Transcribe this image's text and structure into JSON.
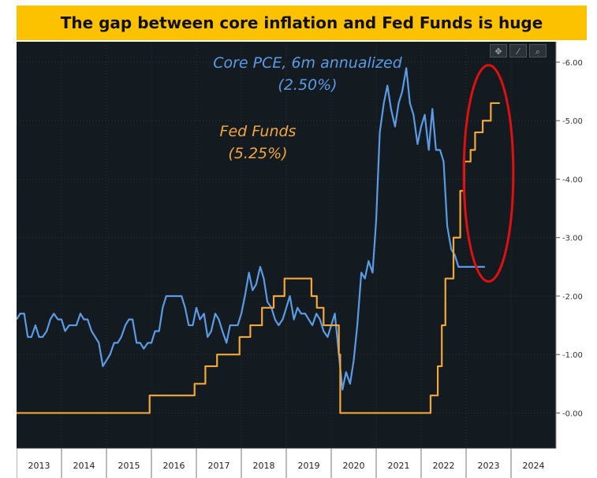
{
  "title": "The gap between core inflation and Fed Funds is huge",
  "toolbar": {
    "icons": [
      "crosshair-icon",
      "draw-icon",
      "zoom-icon"
    ],
    "glyphs": [
      "✥",
      "⁄",
      "⌕"
    ]
  },
  "annotations": {
    "core_label": "Core PCE, 6m annualized",
    "core_value": "(2.50%)",
    "fed_label": "Fed Funds",
    "fed_value": "(5.25%)"
  },
  "colors": {
    "background": "#141b20",
    "core": "#5b9be6",
    "fed": "#f2a73b",
    "highlight": "#e01010",
    "title_bg": "#fcc200"
  },
  "chart_data": {
    "type": "line",
    "title": "The gap between core inflation and Fed Funds is huge",
    "xlim": [
      2013.0,
      2025.0
    ],
    "ylim": [
      -0.6,
      6.35
    ],
    "x_ticks": [
      "2013",
      "2014",
      "2015",
      "2016",
      "2017",
      "2018",
      "2019",
      "2020",
      "2021",
      "2022",
      "2023",
      "2024"
    ],
    "y_ticks": [
      "0.00",
      "1.00",
      "2.00",
      "3.00",
      "4.00",
      "5.00",
      "6.00"
    ],
    "series": [
      {
        "name": "Core PCE, 6m annualized",
        "style": "line",
        "x": [
          2013.0,
          2013.08,
          2013.17,
          2013.25,
          2013.33,
          2013.42,
          2013.5,
          2013.58,
          2013.67,
          2013.75,
          2013.83,
          2013.92,
          2014.0,
          2014.08,
          2014.17,
          2014.25,
          2014.33,
          2014.42,
          2014.5,
          2014.58,
          2014.67,
          2014.75,
          2014.83,
          2014.92,
          2015.0,
          2015.08,
          2015.17,
          2015.25,
          2015.33,
          2015.42,
          2015.5,
          2015.58,
          2015.67,
          2015.75,
          2015.83,
          2015.92,
          2016.0,
          2016.08,
          2016.17,
          2016.25,
          2016.33,
          2016.42,
          2016.5,
          2016.58,
          2016.67,
          2016.75,
          2016.83,
          2016.92,
          2017.0,
          2017.08,
          2017.17,
          2017.25,
          2017.33,
          2017.42,
          2017.5,
          2017.58,
          2017.67,
          2017.75,
          2017.83,
          2017.92,
          2018.0,
          2018.08,
          2018.17,
          2018.25,
          2018.33,
          2018.42,
          2018.5,
          2018.58,
          2018.67,
          2018.75,
          2018.83,
          2018.92,
          2019.0,
          2019.08,
          2019.17,
          2019.25,
          2019.33,
          2019.42,
          2019.5,
          2019.58,
          2019.67,
          2019.75,
          2019.83,
          2019.92,
          2020.0,
          2020.08,
          2020.17,
          2020.25,
          2020.33,
          2020.42,
          2020.5,
          2020.58,
          2020.67,
          2020.75,
          2020.83,
          2020.92,
          2021.0,
          2021.08,
          2021.17,
          2021.25,
          2021.33,
          2021.42,
          2021.5,
          2021.58,
          2021.67,
          2021.75,
          2021.83,
          2021.92,
          2022.0,
          2022.08,
          2022.17,
          2022.25,
          2022.33,
          2022.42,
          2022.5,
          2022.58,
          2022.67,
          2022.75,
          2022.83,
          2022.92,
          2023.0,
          2023.08,
          2023.17,
          2023.25,
          2023.33,
          2023.42
        ],
        "y": [
          1.6,
          1.7,
          1.7,
          1.3,
          1.3,
          1.5,
          1.3,
          1.3,
          1.4,
          1.6,
          1.7,
          1.6,
          1.6,
          1.4,
          1.5,
          1.5,
          1.5,
          1.7,
          1.6,
          1.6,
          1.4,
          1.3,
          1.2,
          0.8,
          0.9,
          1.0,
          1.2,
          1.2,
          1.3,
          1.5,
          1.6,
          1.6,
          1.2,
          1.2,
          1.1,
          1.2,
          1.2,
          1.4,
          1.4,
          1.8,
          2.0,
          2.0,
          2.0,
          2.0,
          2.0,
          1.8,
          1.5,
          1.5,
          1.8,
          1.6,
          1.7,
          1.3,
          1.4,
          1.7,
          1.6,
          1.4,
          1.2,
          1.5,
          1.5,
          1.5,
          1.7,
          2.0,
          2.4,
          2.1,
          2.2,
          2.5,
          2.3,
          1.9,
          1.8,
          1.6,
          1.5,
          1.6,
          1.8,
          2.0,
          1.6,
          1.8,
          1.7,
          1.7,
          1.6,
          1.5,
          1.7,
          1.6,
          1.4,
          1.3,
          1.5,
          1.7,
          1.0,
          0.4,
          0.7,
          0.5,
          0.9,
          1.5,
          2.4,
          2.3,
          2.6,
          2.4,
          3.3,
          4.8,
          5.3,
          5.6,
          5.2,
          4.9,
          5.3,
          5.5,
          5.9,
          5.3,
          5.1,
          4.6,
          4.9,
          5.1,
          4.5,
          5.2,
          4.5,
          4.5,
          4.3,
          3.2,
          2.8,
          2.7,
          2.5,
          2.5,
          2.5,
          2.5,
          2.5,
          2.5,
          2.5,
          2.5
        ]
      },
      {
        "name": "Fed Funds",
        "style": "step",
        "x": [
          2013.0,
          2015.96,
          2016.96,
          2017.2,
          2017.46,
          2017.96,
          2018.2,
          2018.46,
          2018.72,
          2018.96,
          2019.56,
          2019.68,
          2019.83,
          2020.17,
          2020.2,
          2022.21,
          2022.37,
          2022.46,
          2022.54,
          2022.72,
          2022.87,
          2022.96,
          2023.1,
          2023.2,
          2023.37,
          2023.55,
          2023.75
        ],
        "y": [
          0.0,
          0.3,
          0.5,
          0.8,
          1.0,
          1.3,
          1.5,
          1.8,
          2.0,
          2.3,
          2.0,
          1.8,
          1.5,
          1.0,
          0.0,
          0.3,
          0.8,
          1.5,
          2.3,
          3.0,
          3.8,
          4.3,
          4.5,
          4.8,
          5.0,
          5.3,
          5.3
        ]
      }
    ],
    "highlight": {
      "shape": "ellipse",
      "cx": 2023.5,
      "cy": 4.1,
      "rx": 0.55,
      "ry": 1.85
    }
  }
}
